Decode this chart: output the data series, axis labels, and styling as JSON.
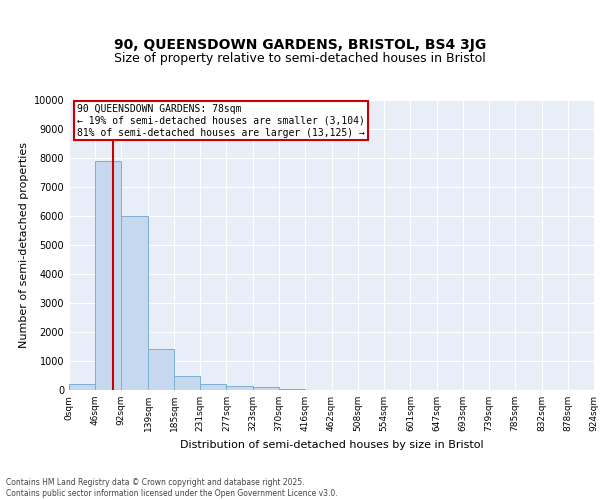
{
  "title": "90, QUEENSDOWN GARDENS, BRISTOL, BS4 3JG",
  "subtitle": "Size of property relative to semi-detached houses in Bristol",
  "xlabel": "Distribution of semi-detached houses by size in Bristol",
  "ylabel": "Number of semi-detached properties",
  "bin_edges": [
    0,
    46,
    92,
    139,
    185,
    231,
    277,
    323,
    370,
    416,
    462,
    508,
    554,
    601,
    647,
    693,
    739,
    785,
    832,
    878,
    924
  ],
  "bar_heights": [
    200,
    7900,
    6000,
    1400,
    500,
    200,
    150,
    100,
    50,
    10,
    5,
    3,
    2,
    1,
    1,
    0,
    0,
    0,
    0,
    0
  ],
  "bar_color": "#c5d8ed",
  "bar_edge_color": "#7aafd4",
  "property_size": 78,
  "property_line_color": "#cc0000",
  "annotation_text": "90 QUEENSDOWN GARDENS: 78sqm\n← 19% of semi-detached houses are smaller (3,104)\n81% of semi-detached houses are larger (13,125) →",
  "annotation_box_color": "#ffffff",
  "annotation_box_edge_color": "#cc0000",
  "annotation_text_color": "#000000",
  "ylim": [
    0,
    10000
  ],
  "xlim": [
    0,
    924
  ],
  "background_color": "#e8eef8",
  "grid_color": "#ffffff",
  "footer_text": "Contains HM Land Registry data © Crown copyright and database right 2025.\nContains public sector information licensed under the Open Government Licence v3.0.",
  "title_fontsize": 10,
  "subtitle_fontsize": 9,
  "ylabel_fontsize": 8,
  "xlabel_fontsize": 8,
  "tick_fontsize": 6.5,
  "annotation_fontsize": 7
}
